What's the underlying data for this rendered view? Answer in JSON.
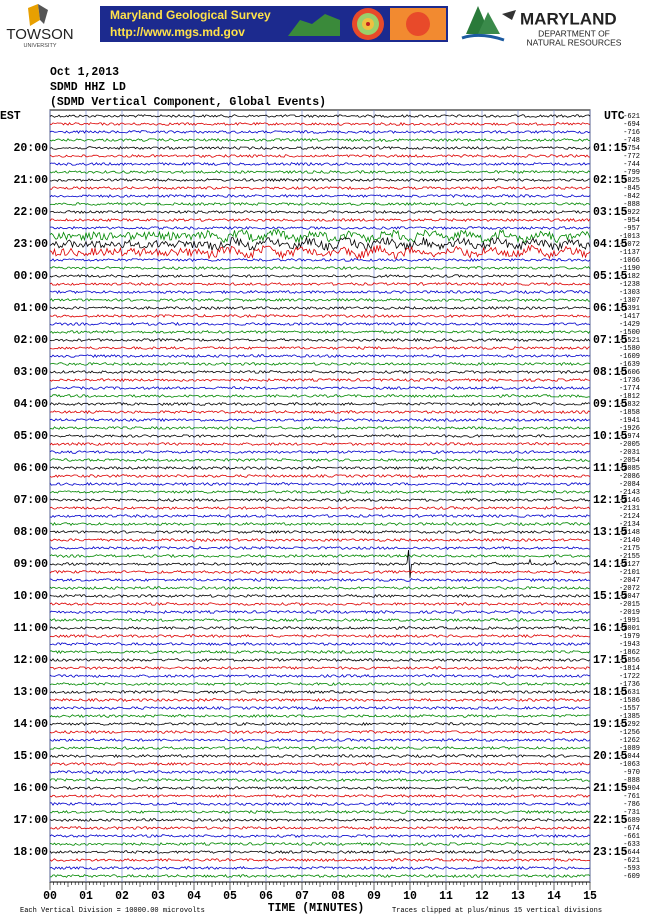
{
  "header": {
    "towson": "TOWSON",
    "towson_sub": "UNIVERSITY",
    "mgs_title": "Maryland Geological Survey",
    "mgs_url": "http://www.mgs.md.gov",
    "dnr_title": "MARYLAND",
    "dnr_sub1": "DEPARTMENT OF",
    "dnr_sub2": "NATURAL RESOURCES"
  },
  "info": [
    "Oct 1,2013",
    "SDMD HHZ LD",
    "(SDMD Vertical Component, Global Events)"
  ],
  "plot": {
    "left_header": "EST",
    "right_header": "UTC",
    "left_labels": [
      "20:00",
      "21:00",
      "22:00",
      "23:00",
      "00:00",
      "01:00",
      "02:00",
      "03:00",
      "04:00",
      "05:00",
      "06:00",
      "07:00",
      "08:00",
      "09:00",
      "10:00",
      "11:00",
      "12:00",
      "13:00",
      "14:00",
      "15:00",
      "16:00",
      "17:00",
      "18:00"
    ],
    "right_labels": [
      "01:15",
      "02:15",
      "03:15",
      "04:15",
      "05:15",
      "06:15",
      "07:15",
      "08:15",
      "09:15",
      "10:15",
      "11:15",
      "12:15",
      "13:15",
      "14:15",
      "15:15",
      "16:15",
      "17:15",
      "18:15",
      "19:15",
      "20:15",
      "21:15",
      "22:15",
      "23:15"
    ],
    "offsets": [
      -621,
      -694,
      -716,
      -748,
      -754,
      -772,
      -744,
      -799,
      -825,
      -845,
      -842,
      -888,
      -922,
      -954,
      -957,
      -1013,
      -1072,
      -1137,
      -1066,
      -1190,
      -1182,
      -1238,
      -1303,
      -1307,
      -1391,
      -1417,
      -1429,
      -1500,
      -1521,
      -1580,
      -1609,
      -1639,
      -1606,
      -1736,
      -1774,
      -1812,
      -1832,
      -1858,
      -1941,
      -1926,
      -1974,
      -2005,
      -2031,
      -2054,
      -2085,
      -2086,
      -2084,
      -2143,
      -2146,
      -2131,
      -2124,
      -2134,
      -2148,
      -2140,
      -2175,
      -2155,
      -2127,
      -2101,
      -2047,
      -2072,
      -2047,
      -2015,
      -2019,
      -1991,
      -2001,
      -1979,
      -1943,
      -1862,
      -1856,
      -1814,
      -1722,
      -1736,
      -1631,
      -1586,
      -1557,
      -1385,
      -1292,
      -1256,
      -1262,
      -1089,
      -1044,
      -1063,
      -970,
      -888,
      -904,
      -761,
      -786,
      -731,
      -689,
      -674,
      -661,
      -633,
      -644,
      -621,
      -593,
      -609
    ],
    "x_ticks": [
      "00",
      "01",
      "02",
      "03",
      "04",
      "05",
      "06",
      "07",
      "08",
      "09",
      "10",
      "11",
      "12",
      "13",
      "14",
      "15"
    ],
    "x_title": "TIME (MINUTES)",
    "footer_left": "Each Vertical Division = 10000.00 microvolts",
    "footer_right": "Traces clipped at plus/minus 15 vertical divisions"
  }
}
